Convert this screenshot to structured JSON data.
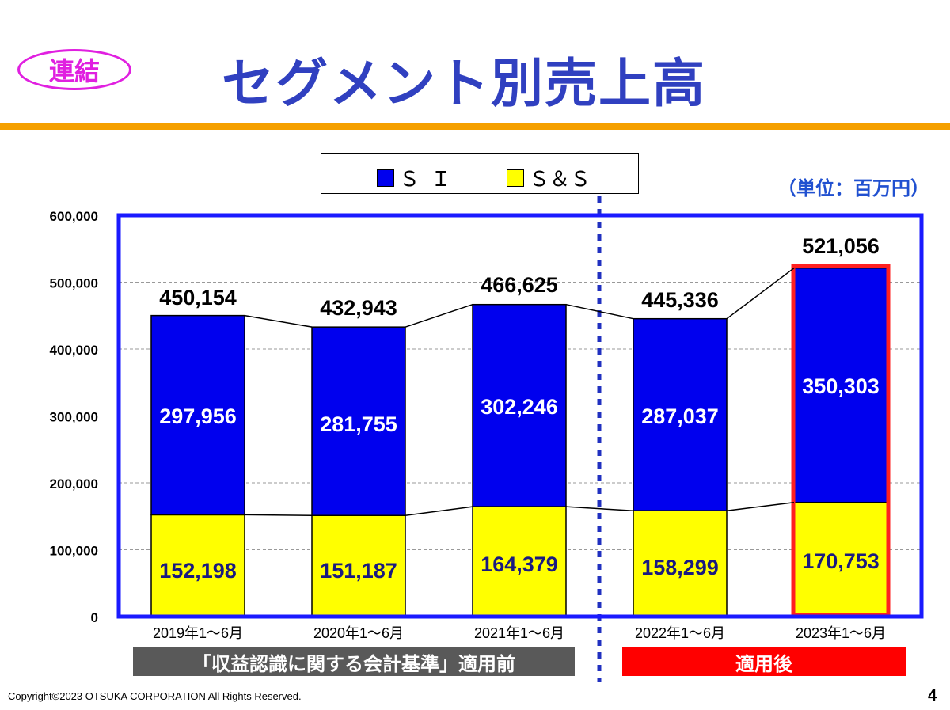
{
  "header": {
    "badge": "連結",
    "title": "セグメント別売上高"
  },
  "unit_label": "（単位：百万円）",
  "tags": {
    "before": "「収益認識に関する会計基準」適用前",
    "after": "適用後"
  },
  "footer": {
    "copyright": "Copyright©2023 OTSUKA CORPORATION All Rights Reserved.",
    "page_number": "4"
  },
  "colors": {
    "si": "#0000ee",
    "ss": "#ffff00",
    "frame": "#1a1aff",
    "highlight": "#ff2020",
    "title": "#3040c0",
    "accent_rule": "#f5a000"
  },
  "chart_data": {
    "type": "bar",
    "stacked": true,
    "categories": [
      "2019年1～6月",
      "2020年1～6月",
      "2021年1～6月",
      "2022年1～6月",
      "2023年1～6月"
    ],
    "series": [
      {
        "name": "Ｓ＆Ｓ",
        "values": [
          152198,
          151187,
          164379,
          158299,
          170753
        ],
        "color": "#ffff00"
      },
      {
        "name": "ＳＩ",
        "values": [
          297956,
          281755,
          302246,
          287037,
          350303
        ],
        "color": "#0000ee"
      }
    ],
    "totals": [
      450154,
      432943,
      466625,
      445336,
      521056
    ],
    "y_ticks": [
      "0",
      "100,000",
      "200,000",
      "300,000",
      "400,000",
      "500,000",
      "600,000"
    ],
    "ylim": [
      0,
      600000
    ],
    "grid": true,
    "legend_position": "top",
    "highlighted_category": "2023年1～6月"
  }
}
